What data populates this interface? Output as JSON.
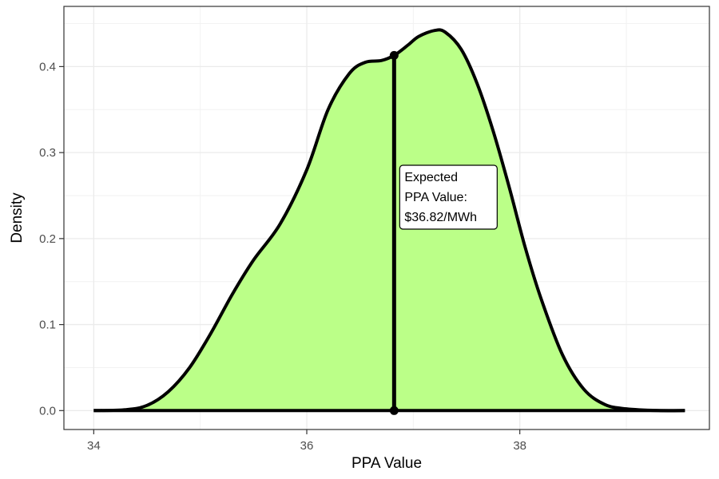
{
  "chart_data": {
    "type": "area",
    "title": "",
    "xlabel": "PPA Value",
    "ylabel": "Density",
    "xlim": [
      33.72,
      39.78
    ],
    "ylim": [
      -0.022,
      0.47
    ],
    "x_ticks": [
      34,
      36,
      38
    ],
    "x_tick_labels": [
      "34",
      "36",
      "38"
    ],
    "y_ticks": [
      0.0,
      0.1,
      0.2,
      0.3,
      0.4
    ],
    "y_tick_labels": [
      "0.0",
      "0.1",
      "0.2",
      "0.3",
      "0.4"
    ],
    "grid": true,
    "density": {
      "x": [
        34.0,
        34.3,
        34.5,
        34.7,
        34.9,
        35.1,
        35.3,
        35.5,
        35.75,
        36.0,
        36.2,
        36.4,
        36.55,
        36.7,
        36.82,
        36.95,
        37.05,
        37.2,
        37.3,
        37.45,
        37.6,
        37.75,
        37.9,
        38.05,
        38.2,
        38.4,
        38.6,
        38.8,
        39.0,
        39.3,
        39.55
      ],
      "y": [
        0.0,
        0.001,
        0.006,
        0.022,
        0.05,
        0.09,
        0.135,
        0.175,
        0.217,
        0.28,
        0.35,
        0.392,
        0.405,
        0.407,
        0.413,
        0.425,
        0.435,
        0.442,
        0.44,
        0.42,
        0.38,
        0.325,
        0.26,
        0.19,
        0.13,
        0.065,
        0.025,
        0.007,
        0.002,
        0.0,
        0.0
      ],
      "fill": "#bbff88",
      "stroke": "#000000"
    },
    "expected_value": {
      "x": 36.82,
      "y": 0.413,
      "label_lines": [
        "Expected",
        "PPA Value:",
        "$36.82/MWh"
      ]
    }
  }
}
